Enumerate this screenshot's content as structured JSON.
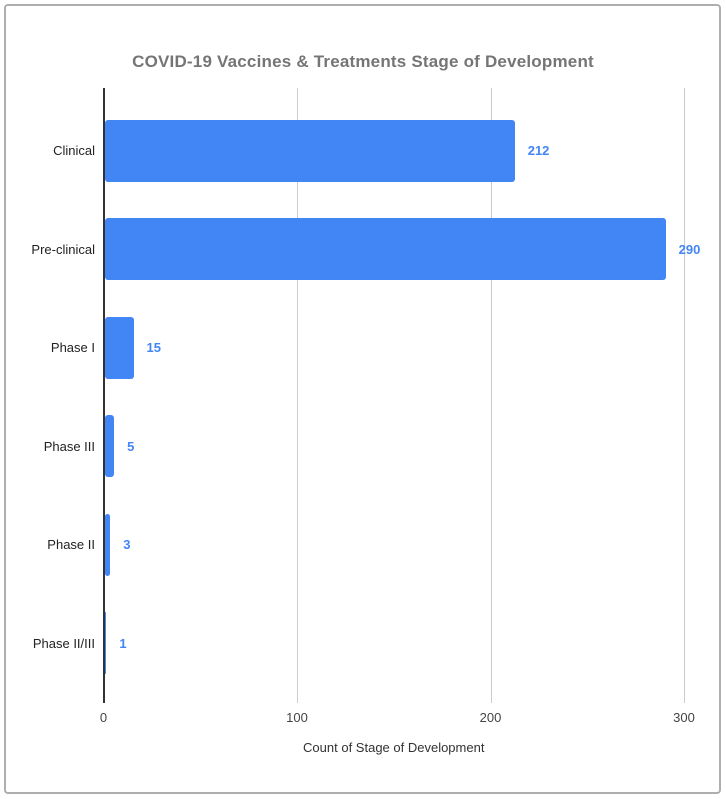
{
  "chart_data": {
    "type": "bar",
    "orientation": "horizontal",
    "title": "COVID-19 Vaccines & Treatments Stage of Development",
    "categories": [
      "Clinical",
      "Pre-clinical",
      "Phase I",
      "Phase III",
      "Phase II",
      "Phase II/III"
    ],
    "values": [
      212,
      290,
      15,
      5,
      3,
      1
    ],
    "annotations": [
      "212",
      "290",
      "15",
      "5",
      "3",
      "1"
    ],
    "xlabel": "Count of Stage of Development",
    "ylabel": "",
    "xlim": [
      0,
      314
    ],
    "xticks": [
      0,
      100,
      200,
      300
    ],
    "grid": true,
    "legend_position": "none",
    "bar_color": "#4285f4",
    "annotation_color": "#4285f4"
  },
  "colors": {
    "background": "#ffffff",
    "frame_border": "#aeaeae",
    "title_text": "#757575",
    "axis_baseline": "#333333",
    "gridline": "#cccccc",
    "tick_label": "#444444",
    "category_label": "#222222",
    "axis_title": "#333333"
  }
}
